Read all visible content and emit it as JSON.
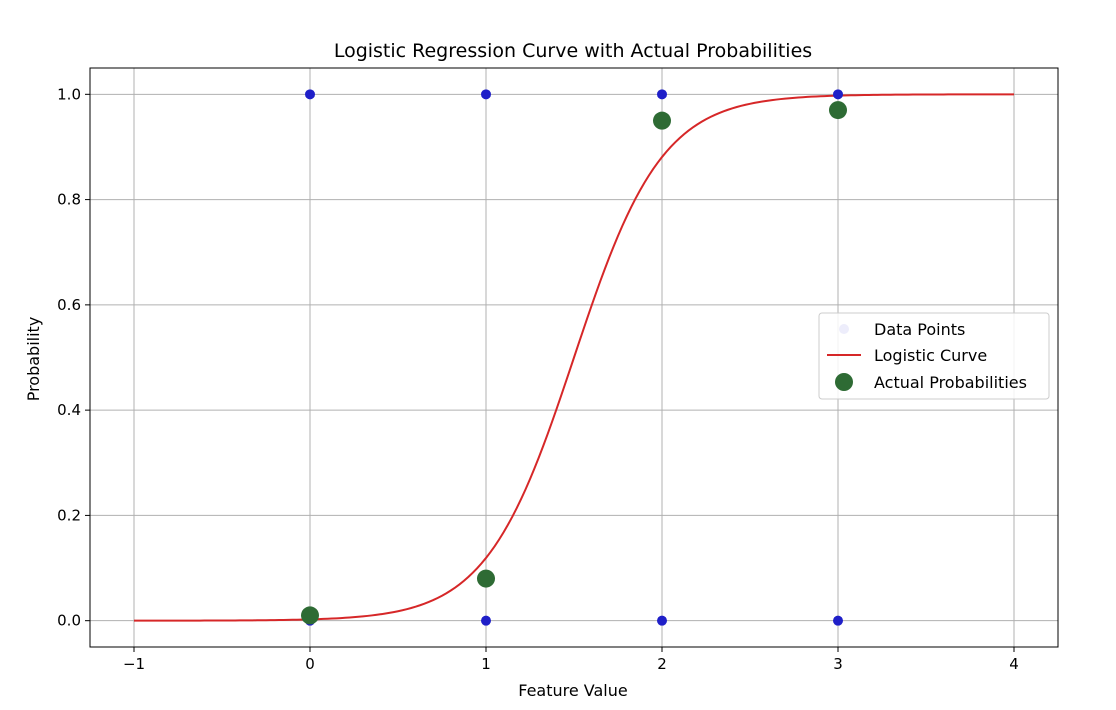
{
  "chart_data": {
    "type": "scatter",
    "title": "Logistic Regression Curve with Actual Probabilities",
    "xlabel": "Feature Value",
    "ylabel": "Probability",
    "xlim": [
      -1.25,
      4.25
    ],
    "ylim": [
      -0.05,
      1.05
    ],
    "x_ticks": [
      -1,
      0,
      1,
      2,
      3,
      4
    ],
    "x_tick_labels": [
      "−1",
      "0",
      "1",
      "2",
      "3",
      "4"
    ],
    "y_ticks": [
      0.0,
      0.2,
      0.4,
      0.6,
      0.8,
      1.0
    ],
    "y_tick_labels": [
      "0.0",
      "0.2",
      "0.4",
      "0.6",
      "0.8",
      "1.0"
    ],
    "grid": true,
    "legend_position": "center-right",
    "series": [
      {
        "name": "Data Points",
        "kind": "scatter",
        "color": "#1f1fc8",
        "points": [
          {
            "x": 0,
            "y": 1
          },
          {
            "x": 1,
            "y": 1
          },
          {
            "x": 2,
            "y": 1
          },
          {
            "x": 3,
            "y": 1
          },
          {
            "x": 0,
            "y": 0
          },
          {
            "x": 1,
            "y": 0
          },
          {
            "x": 2,
            "y": 0
          },
          {
            "x": 3,
            "y": 0
          }
        ]
      },
      {
        "name": "Logistic Curve",
        "kind": "line",
        "color": "#d62728",
        "x_range": [
          -1,
          4
        ],
        "logistic": {
          "k": 4.0,
          "x0": 1.5
        }
      },
      {
        "name": "Actual Probabilities",
        "kind": "scatter",
        "color": "#2e6b34",
        "points": [
          {
            "x": 0,
            "y": 0.01
          },
          {
            "x": 1,
            "y": 0.08
          },
          {
            "x": 2,
            "y": 0.95
          },
          {
            "x": 3,
            "y": 0.97
          }
        ]
      }
    ]
  }
}
